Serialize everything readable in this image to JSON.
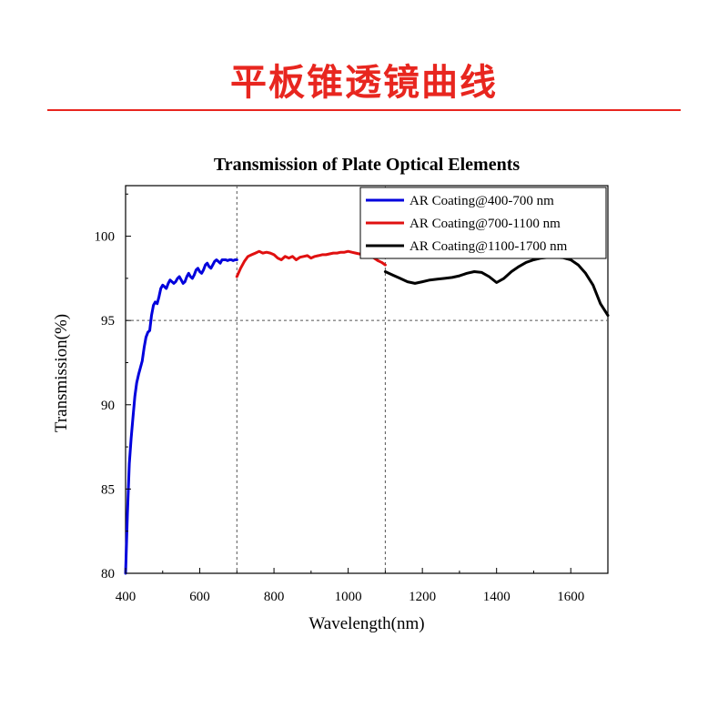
{
  "page": {
    "title": "平板锥透镜曲线",
    "accent_color": "#e8261f"
  },
  "chart_data": {
    "type": "line",
    "title": "Transmission of Plate Optical Elements",
    "xlabel": "Wavelength(nm)",
    "ylabel": "Transmission(%)",
    "xlim": [
      400,
      1700
    ],
    "ylim": [
      80,
      103
    ],
    "xticks": [
      400,
      600,
      800,
      1000,
      1200,
      1400,
      1600
    ],
    "yticks": [
      80,
      85,
      90,
      95,
      100
    ],
    "xtick_labels": [
      "400",
      "600",
      "800",
      "1000",
      "1200",
      "1400",
      "1600"
    ],
    "ytick_labels": [
      "80",
      "85",
      "90",
      "95",
      "100"
    ],
    "grid": false,
    "legend_position": "top-right",
    "reference_lines": {
      "x": [
        700,
        1100
      ],
      "y": [
        95
      ]
    },
    "series": [
      {
        "name": "AR Coating@400-700 nm",
        "color": "#0000dd",
        "x": [
          400,
          405,
          410,
          415,
          420,
          425,
          430,
          435,
          440,
          445,
          450,
          455,
          460,
          465,
          470,
          475,
          480,
          485,
          490,
          495,
          500,
          505,
          510,
          515,
          520,
          525,
          530,
          535,
          540,
          545,
          550,
          555,
          560,
          565,
          570,
          575,
          580,
          585,
          590,
          595,
          600,
          605,
          610,
          615,
          620,
          625,
          630,
          635,
          640,
          645,
          650,
          655,
          660,
          665,
          670,
          675,
          680,
          685,
          690,
          695,
          700
        ],
        "y": [
          80.0,
          83.5,
          86.5,
          88.0,
          89.3,
          90.5,
          91.3,
          91.8,
          92.2,
          92.6,
          93.4,
          94.0,
          94.3,
          94.4,
          95.3,
          95.9,
          96.1,
          96.0,
          96.4,
          96.9,
          97.1,
          97.0,
          96.9,
          97.2,
          97.4,
          97.3,
          97.2,
          97.3,
          97.5,
          97.6,
          97.4,
          97.2,
          97.3,
          97.6,
          97.8,
          97.6,
          97.5,
          97.7,
          98.0,
          98.1,
          97.9,
          97.8,
          98.0,
          98.3,
          98.4,
          98.2,
          98.1,
          98.3,
          98.5,
          98.6,
          98.5,
          98.4,
          98.6,
          98.6,
          98.6,
          98.55,
          98.6,
          98.6,
          98.55,
          98.6,
          98.6
        ]
      },
      {
        "name": "AR Coating@700-1100 nm",
        "color": "#e01010",
        "x": [
          700,
          710,
          720,
          730,
          740,
          750,
          760,
          770,
          780,
          790,
          800,
          810,
          820,
          830,
          840,
          850,
          860,
          870,
          880,
          890,
          900,
          910,
          920,
          930,
          940,
          950,
          960,
          970,
          980,
          990,
          1000,
          1010,
          1020,
          1030,
          1040,
          1050,
          1060,
          1070,
          1080,
          1090,
          1100
        ],
        "y": [
          97.6,
          98.1,
          98.5,
          98.8,
          98.9,
          99.0,
          99.1,
          99.0,
          99.05,
          99.0,
          98.9,
          98.7,
          98.6,
          98.8,
          98.7,
          98.8,
          98.6,
          98.75,
          98.8,
          98.85,
          98.7,
          98.8,
          98.85,
          98.9,
          98.9,
          98.95,
          99.0,
          99.0,
          99.05,
          99.05,
          99.1,
          99.05,
          99.0,
          98.95,
          98.9,
          98.85,
          98.8,
          98.7,
          98.55,
          98.45,
          98.3
        ]
      },
      {
        "name": "AR Coating@1100-1700 nm",
        "color": "#000000",
        "x": [
          1100,
          1120,
          1140,
          1160,
          1180,
          1200,
          1220,
          1240,
          1260,
          1280,
          1300,
          1320,
          1340,
          1360,
          1380,
          1400,
          1420,
          1440,
          1460,
          1480,
          1500,
          1520,
          1540,
          1560,
          1580,
          1600,
          1620,
          1640,
          1660,
          1680,
          1700
        ],
        "y": [
          97.9,
          97.7,
          97.5,
          97.3,
          97.2,
          97.3,
          97.4,
          97.45,
          97.5,
          97.55,
          97.65,
          97.8,
          97.9,
          97.85,
          97.6,
          97.25,
          97.5,
          97.9,
          98.2,
          98.45,
          98.6,
          98.7,
          98.75,
          98.75,
          98.72,
          98.6,
          98.3,
          97.8,
          97.1,
          96.0,
          95.3
        ]
      }
    ]
  }
}
